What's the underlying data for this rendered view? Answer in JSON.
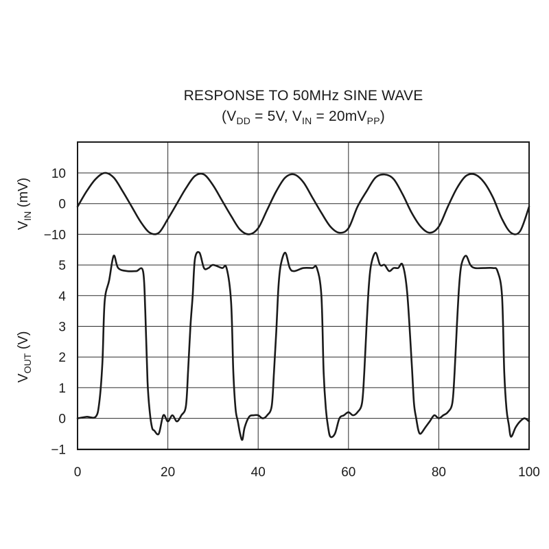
{
  "chart_data": {
    "type": "line",
    "title": {
      "line1": "RESPONSE TO 50MHz SINE WAVE",
      "open": "(V",
      "dd_sub": "DD",
      "mid": " = 5V, V",
      "in_sub": "IN",
      "mid2": " = 20mV",
      "pp_sub": "PP",
      "close": ")"
    },
    "x": {
      "ticks": [
        0,
        20,
        40,
        60,
        80,
        100
      ],
      "range": [
        0,
        100
      ]
    },
    "y_labels": {
      "vin": {
        "base": "V",
        "sub": "IN",
        "unit": " (mV)"
      },
      "vout": {
        "base": "V",
        "sub": "OUT",
        "unit": " (V)"
      }
    },
    "y_ticks": {
      "vin": [
        "10",
        "0",
        "−10"
      ],
      "vout": [
        "5",
        "4",
        "3",
        "2",
        "1",
        "0",
        "−1"
      ]
    },
    "series": [
      {
        "panel": "vin",
        "unit": "mV",
        "x": [
          0,
          2,
          4,
          6,
          8,
          10,
          12,
          14,
          16,
          18,
          20,
          22,
          24,
          26,
          28,
          30,
          32,
          34,
          36,
          38,
          40,
          42,
          44,
          46,
          48,
          50,
          52,
          54,
          56,
          58,
          60,
          62,
          64,
          66,
          68,
          70,
          72,
          74,
          76,
          78,
          80,
          82,
          84,
          86,
          88,
          90,
          92,
          94,
          96,
          98,
          100
        ],
        "values": [
          -1,
          4,
          8,
          10,
          8.5,
          4,
          -1,
          -6,
          -9.5,
          -9.5,
          -5,
          0,
          5,
          9,
          9.5,
          6,
          1,
          -4,
          -8.5,
          -10,
          -8,
          -2,
          4,
          8.5,
          9.5,
          7,
          2,
          -3,
          -7.5,
          -9.5,
          -8,
          -1,
          4,
          8.5,
          9.5,
          8,
          3,
          -3,
          -7.5,
          -9.5,
          -7.5,
          -1,
          5,
          9,
          9.5,
          7,
          2,
          -5,
          -9.5,
          -9,
          -1
        ]
      },
      {
        "panel": "vout",
        "unit": "V",
        "x": [
          0,
          2,
          4,
          4.8,
          5.5,
          6,
          7,
          8,
          9,
          11,
          13,
          14.5,
          15,
          15.5,
          16,
          16.5,
          17,
          18,
          19,
          20,
          21,
          22,
          23,
          24,
          24.5,
          25,
          25.5,
          26,
          27,
          28,
          29,
          30,
          32,
          33,
          34,
          34.5,
          35,
          35.5,
          36,
          36.5,
          37,
          38,
          39,
          40,
          41,
          42,
          43,
          43.5,
          44,
          44.5,
          45,
          46,
          47,
          48,
          50,
          52,
          53,
          54,
          54.5,
          55,
          55.5,
          56,
          57,
          58,
          59,
          60,
          61,
          62,
          63,
          63.5,
          64,
          64.5,
          65,
          66,
          67,
          68,
          69,
          70,
          71,
          72,
          73,
          74,
          74.5,
          75,
          75.5,
          76,
          77,
          78,
          79,
          80,
          81,
          82,
          83,
          83.5,
          84,
          84.5,
          85,
          86,
          87,
          88,
          90,
          92,
          93,
          94,
          94.5,
          95,
          95.5,
          96,
          97,
          98,
          99,
          100
        ],
        "values": [
          0,
          0.05,
          0.05,
          0.5,
          1.8,
          3.8,
          4.5,
          5.3,
          4.9,
          4.8,
          4.8,
          4.8,
          3.5,
          1.2,
          0.2,
          -0.3,
          -0.4,
          -0.5,
          0.1,
          -0.1,
          0.1,
          -0.1,
          0.1,
          0.4,
          1.6,
          3.0,
          4.0,
          5.2,
          5.4,
          4.9,
          4.9,
          5.0,
          4.9,
          4.9,
          3.8,
          1.5,
          0.3,
          -0.1,
          -0.5,
          -0.7,
          -0.3,
          0.05,
          0.1,
          0.1,
          0.0,
          0.1,
          0.4,
          1.5,
          2.8,
          4.3,
          5.0,
          5.4,
          4.9,
          4.8,
          4.9,
          4.9,
          4.9,
          4.0,
          1.5,
          0.3,
          -0.3,
          -0.6,
          -0.5,
          0.0,
          0.1,
          0.2,
          0.1,
          0.2,
          0.5,
          1.5,
          3.0,
          4.3,
          5.0,
          5.4,
          5.0,
          5.0,
          4.8,
          4.9,
          4.9,
          5.0,
          4.1,
          1.8,
          0.5,
          0.0,
          -0.4,
          -0.5,
          -0.3,
          -0.1,
          0.1,
          0.0,
          0.1,
          0.2,
          0.5,
          1.5,
          3.0,
          4.3,
          5.0,
          5.3,
          5.0,
          4.9,
          4.9,
          4.9,
          4.8,
          4.0,
          1.5,
          0.3,
          -0.2,
          -0.6,
          -0.3,
          -0.1,
          0.0,
          -0.1
        ]
      }
    ],
    "grid": true,
    "colors": {
      "line": "#1a1a1a",
      "grid": "#2a2a2a",
      "text": "#1a1a1a"
    }
  }
}
